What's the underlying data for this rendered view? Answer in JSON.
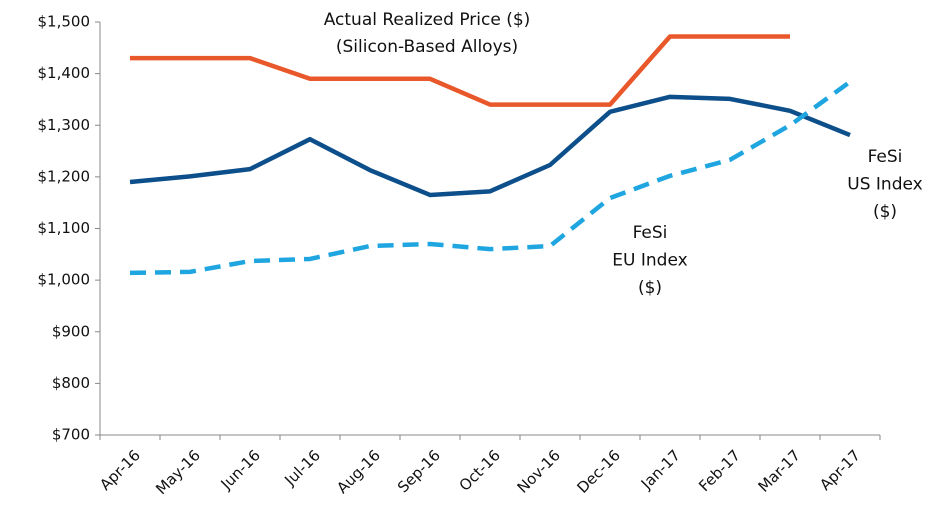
{
  "chart_data": {
    "type": "line",
    "categories": [
      "Apr-16",
      "May-16",
      "Jun-16",
      "Jul-16",
      "Aug-16",
      "Sep-16",
      "Oct-16",
      "Nov-16",
      "Dec-16",
      "Jan-17",
      "Feb-17",
      "Mar-17",
      "Apr-17"
    ],
    "series": [
      {
        "color": "#e8582a",
        "dashed": false,
        "values": [
          1430,
          1430,
          1430,
          1390,
          1390,
          1390,
          1340,
          1340,
          1340,
          1472,
          1472,
          1472,
          null
        ]
      },
      {
        "color": "#0d4f8b",
        "dashed": false,
        "values": [
          1190,
          1201,
          1215,
          1273,
          1213,
          1165,
          1172,
          1223,
          1326,
          1355,
          1351,
          1328,
          1281
        ]
      },
      {
        "color": "#1fa6e0",
        "dashed": true,
        "values": [
          1014,
          1016,
          1037,
          1041,
          1066,
          1070,
          1060,
          1066,
          1159,
          1202,
          1233,
          1300,
          1384
        ]
      }
    ],
    "annotations": [
      {
        "lines": [
          "Actual Realized Price ($)",
          "(Silicon-Based Alloys)"
        ]
      },
      {
        "lines": [
          "FeSi",
          "EU Index",
          "($)"
        ]
      },
      {
        "lines": [
          "FeSi",
          "US Index",
          "($)"
        ]
      }
    ],
    "ylim": [
      700,
      1500
    ],
    "yticks": [
      {
        "value": 700,
        "label": "$700"
      },
      {
        "value": 800,
        "label": "$800"
      },
      {
        "value": 900,
        "label": "$900"
      },
      {
        "value": 1000,
        "label": "$1,000"
      },
      {
        "value": 1100,
        "label": "$1,100"
      },
      {
        "value": 1200,
        "label": "$1,200"
      },
      {
        "value": 1300,
        "label": "$1,300"
      },
      {
        "value": 1400,
        "label": "$1,400"
      },
      {
        "value": 1500,
        "label": "$1,500"
      }
    ],
    "grid": false
  }
}
